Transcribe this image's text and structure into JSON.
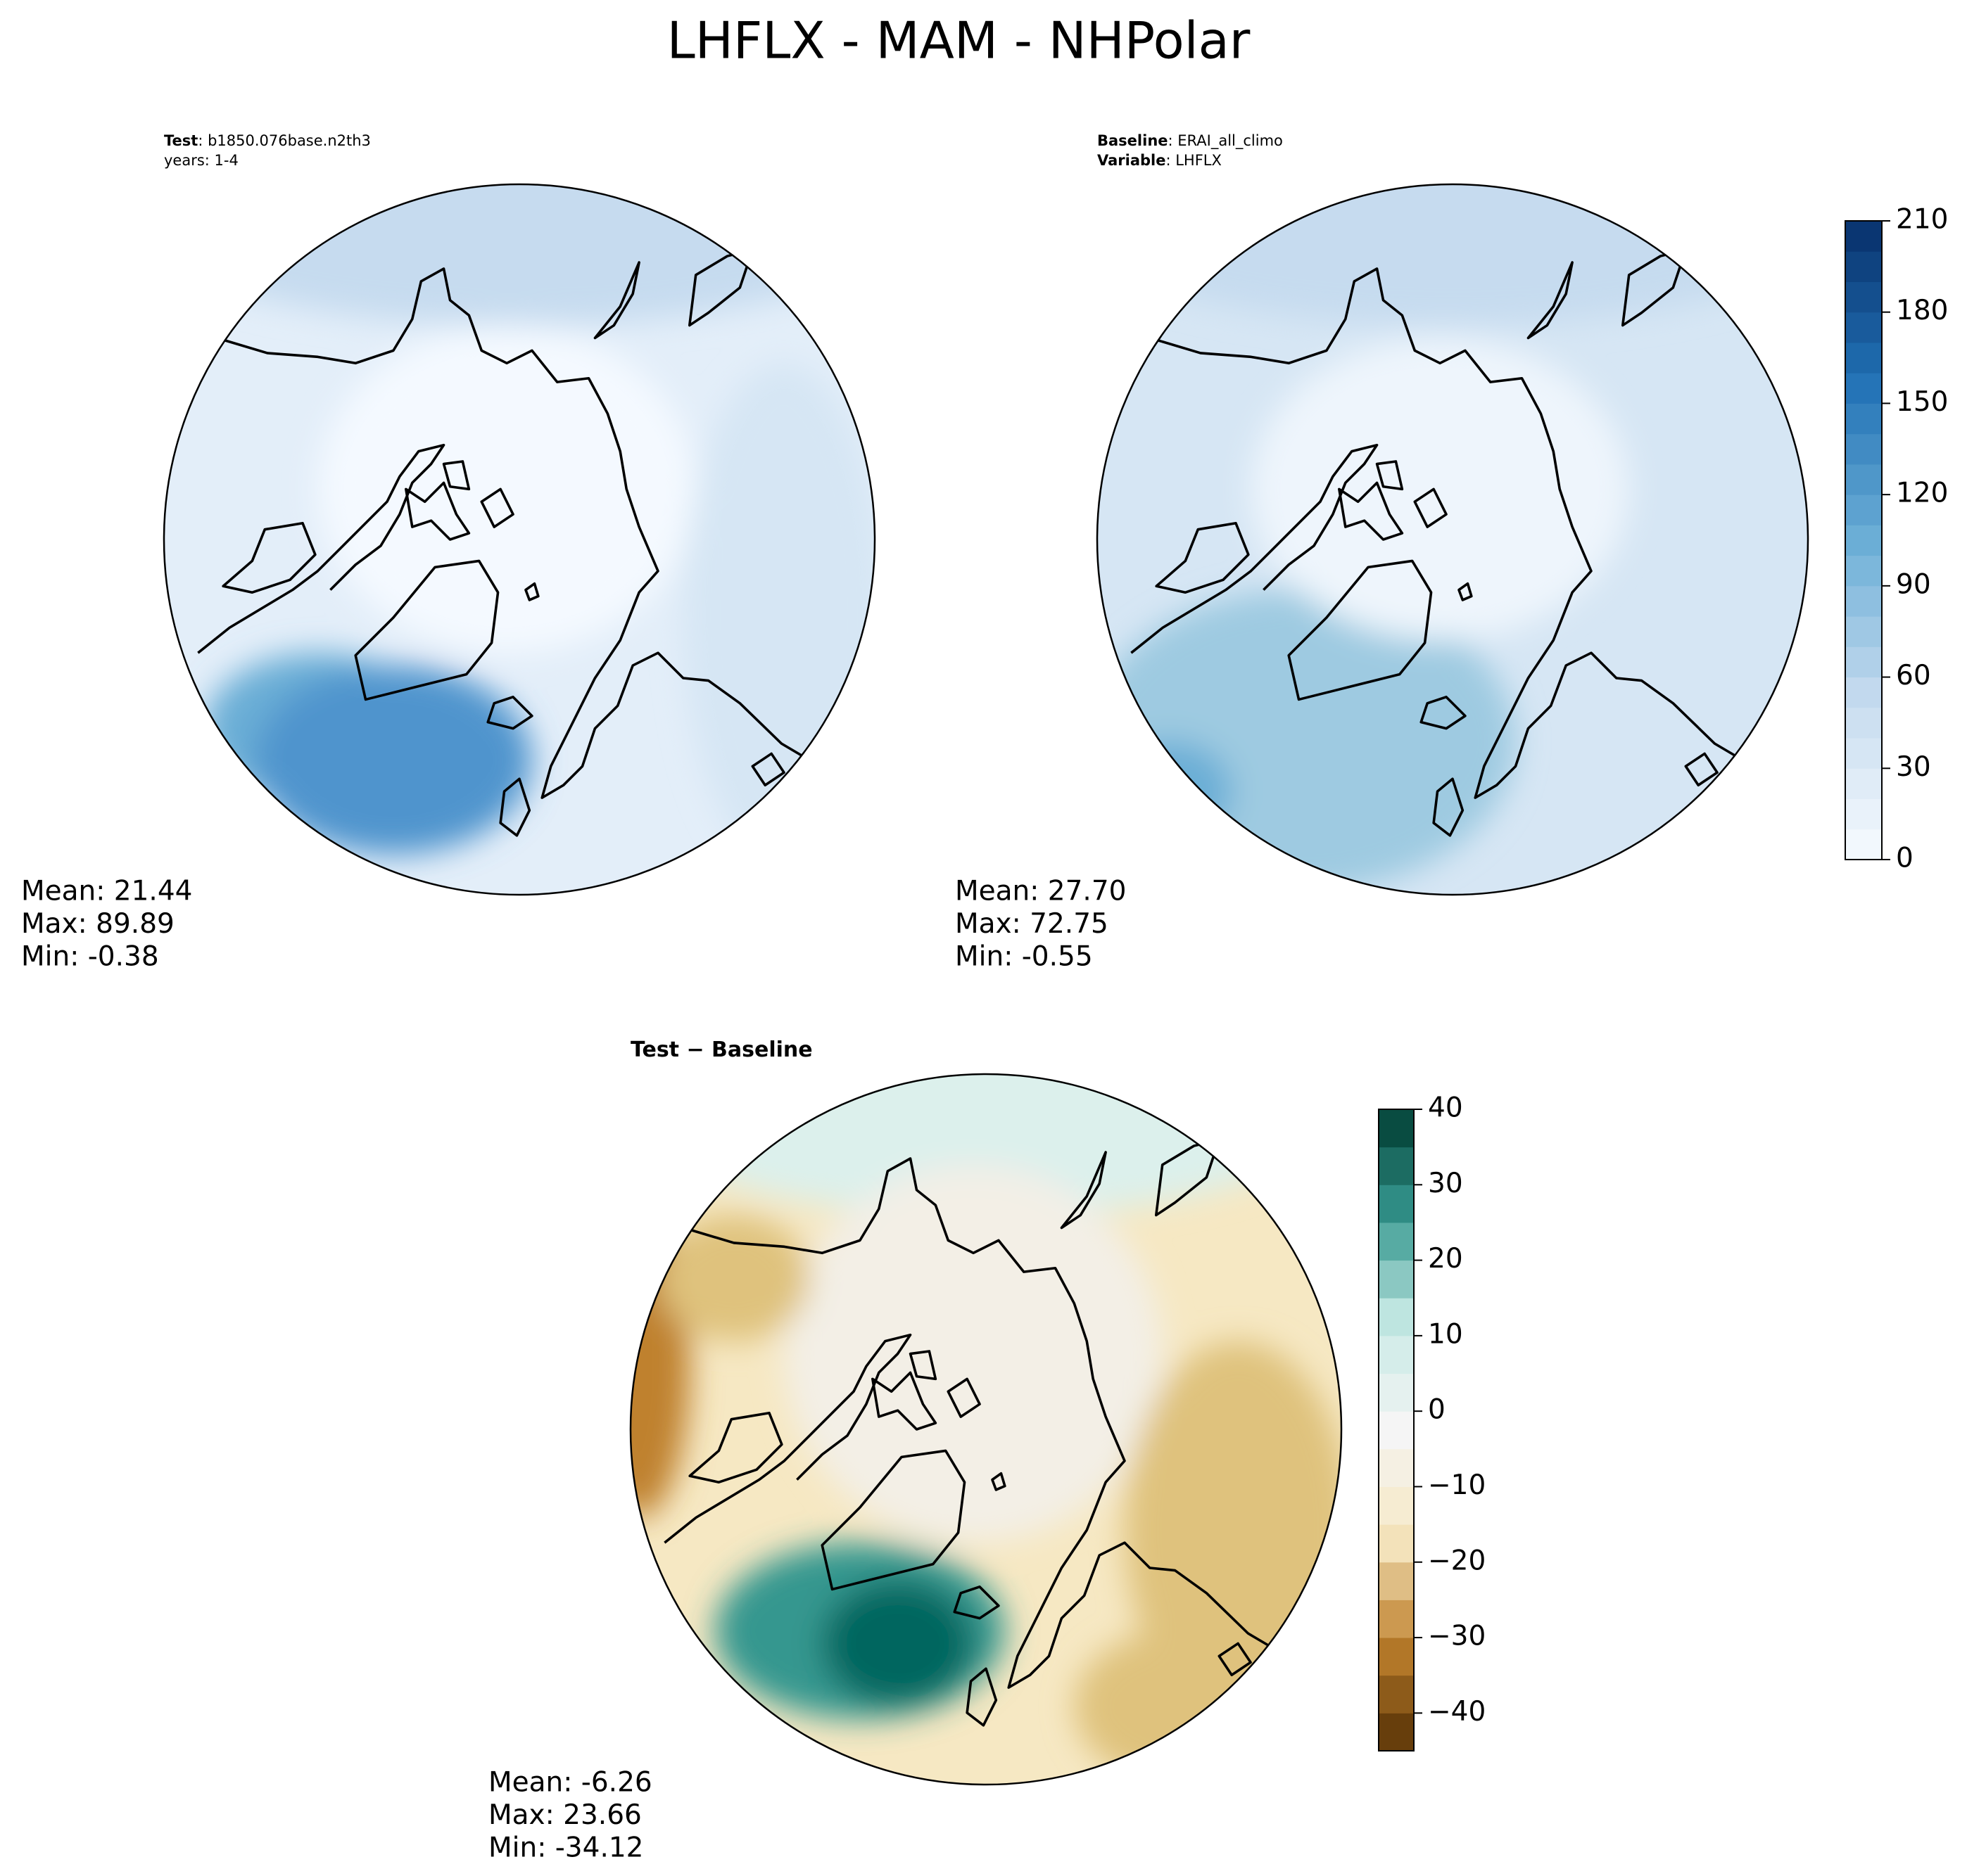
{
  "title": "LHFLX - MAM - NHPolar",
  "panels": [
    {
      "header": [
        {
          "bold": "Test",
          "text": ": b1850.076base.n2th3"
        },
        {
          "text": "years: 1-4"
        }
      ],
      "stats": [
        "Mean: 21.44",
        "Max: 89.89",
        "Min: -0.38"
      ]
    },
    {
      "header": [
        {
          "bold": "Baseline",
          "text": ": ERAI_all_climo"
        },
        {
          "bold": "Variable",
          "text": ": LHFLX"
        }
      ],
      "stats": [
        "Mean: 27.70",
        "Max: 72.75",
        "Min: -0.55"
      ]
    },
    {
      "header": [
        {
          "bold": "Test − Baseline"
        }
      ],
      "stats": [
        "Mean: -6.26",
        "Max: 23.66",
        "Min: -34.12"
      ]
    }
  ],
  "colorbars": [
    {
      "lim": [
        0,
        210
      ],
      "ticks": [
        0,
        30,
        60,
        90,
        120,
        150,
        180,
        210
      ],
      "colors": [
        "#f7fbff",
        "#c6dbef",
        "#6baed6",
        "#2171b5",
        "#08306b"
      ]
    },
    {
      "lim": [
        -45,
        40
      ],
      "ticks": [
        {
          "value": -40,
          "label": "−40"
        },
        {
          "value": -30,
          "label": "−30"
        },
        {
          "value": -20,
          "label": "−20"
        },
        {
          "value": -10,
          "label": "−10"
        },
        0,
        10,
        20,
        30,
        40
      ],
      "colors": [
        "#543005",
        "#bf812d",
        "#f6e8c3",
        "#f5f5f5",
        "#c7eae5",
        "#35978f",
        "#003c30"
      ]
    }
  ]
}
